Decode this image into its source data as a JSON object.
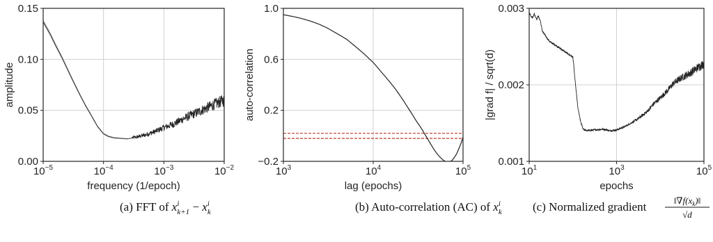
{
  "chart_data": [
    {
      "type": "line",
      "panel": "a",
      "caption": "(a) FFT of x^i_{k+1} − x^i_k",
      "caption_parts": {
        "prefix": "(a) FFT of ",
        "var": "x",
        "sup1": "i",
        "sub1": "k+1",
        "minus": " − ",
        "sup2": "i",
        "sub2": "k"
      },
      "xlabel": "frequency (1/epoch)",
      "ylabel": "amplitude",
      "xscale": "log",
      "xlim": [
        1e-05,
        0.01
      ],
      "ylim": [
        0.0,
        0.15
      ],
      "grid": true,
      "xticks": [
        {
          "base": "10",
          "exp": "−5"
        },
        {
          "base": "10",
          "exp": "−4"
        },
        {
          "base": "10",
          "exp": "−3"
        },
        {
          "base": "10",
          "exp": "−2"
        }
      ],
      "yticks": [
        "0.00",
        "0.05",
        "0.10",
        "0.15"
      ],
      "series": [
        {
          "color": "#222222",
          "band_color": "#bdbdbd",
          "noise_start": 0.0003,
          "x": [
            1e-05,
            1.3e-05,
            1.6e-05,
            2e-05,
            2.5e-05,
            3e-05,
            3.5e-05,
            4e-05,
            5e-05,
            6e-05,
            7e-05,
            8e-05,
            0.0001,
            0.00012,
            0.00015,
            0.0002,
            0.00025,
            0.0003,
            0.0004,
            0.0005,
            0.0007,
            0.001,
            0.0015,
            0.002,
            0.003,
            0.005,
            0.007,
            0.01
          ],
          "y": [
            0.137,
            0.125,
            0.114,
            0.103,
            0.091,
            0.081,
            0.073,
            0.066,
            0.055,
            0.047,
            0.04,
            0.034,
            0.027,
            0.0245,
            0.023,
            0.0225,
            0.022,
            0.023,
            0.0245,
            0.026,
            0.029,
            0.033,
            0.037,
            0.041,
            0.046,
            0.052,
            0.056,
            0.06
          ]
        }
      ]
    },
    {
      "type": "line",
      "panel": "b",
      "caption": "(b) Auto-correlation (AC) of x^i_k",
      "caption_parts": {
        "prefix": "(b) Auto-correlation (AC) of ",
        "var": "x",
        "sup1": "i",
        "sub1": "k"
      },
      "xlabel": "lag (epochs)",
      "ylabel": "auto-correlation",
      "xscale": "log",
      "xlim": [
        1000,
        100000
      ],
      "ylim": [
        -0.2,
        1.0
      ],
      "grid": true,
      "xticks": [
        {
          "base": "10",
          "exp": "3"
        },
        {
          "base": "10",
          "exp": "4"
        },
        {
          "base": "10",
          "exp": "5"
        }
      ],
      "yticks": [
        "−0.2",
        "0.2",
        "0.6",
        "1.0"
      ],
      "hlines": [
        {
          "y": 0.02,
          "color": "#c0392b",
          "style": "dashed"
        },
        {
          "y": -0.02,
          "color": "#c0392b",
          "style": "dashed"
        }
      ],
      "series": [
        {
          "color": "#222222",
          "x": [
            1000,
            1300,
            1600,
            2000,
            2500,
            3000,
            4000,
            5000,
            6000,
            7000,
            8000,
            10000,
            12000,
            15000,
            18000,
            22000,
            26000,
            30000,
            35000,
            40000,
            45000,
            50000,
            55000,
            60000,
            65000,
            70000,
            75000,
            80000,
            85000,
            90000,
            95000,
            100000
          ],
          "y": [
            0.95,
            0.935,
            0.92,
            0.9,
            0.875,
            0.85,
            0.8,
            0.76,
            0.715,
            0.675,
            0.64,
            0.575,
            0.51,
            0.43,
            0.36,
            0.27,
            0.19,
            0.12,
            0.05,
            -0.02,
            -0.08,
            -0.13,
            -0.165,
            -0.19,
            -0.205,
            -0.205,
            -0.195,
            -0.17,
            -0.14,
            -0.1,
            -0.06,
            -0.01
          ]
        }
      ]
    },
    {
      "type": "line",
      "panel": "c",
      "caption": "(c) Normalized gradient ||∇f(x_k)|| / √d",
      "caption_parts": {
        "prefix": "(c) Normalized gradient ",
        "num": "‖∇f(x",
        "num_sub": "k",
        "num_end": ")‖",
        "den": "√d"
      },
      "xlabel": "epochs",
      "ylabel": "|grad f| / sqrt(d)",
      "xscale": "log",
      "xlim": [
        10,
        100000
      ],
      "ylim": [
        0.001,
        0.003
      ],
      "grid": true,
      "xticks": [
        {
          "base": "10",
          "exp": "1"
        },
        {
          "base": "10",
          "exp": "3"
        },
        {
          "base": "10",
          "exp": "5"
        }
      ],
      "yticks": [
        "0.001",
        "0.002",
        "0.003"
      ],
      "series": [
        {
          "color": "#222222",
          "x": [
            10,
            11,
            12,
            13,
            14,
            15,
            16,
            18,
            20,
            25,
            30,
            40,
            50,
            60,
            70,
            80,
            90,
            100,
            105,
            110,
            120,
            130,
            150,
            170,
            200,
            300,
            500,
            700,
            1000,
            1500,
            2000,
            3000,
            5000,
            7000,
            10000,
            15000,
            20000,
            30000,
            50000,
            70000,
            100000
          ],
          "y": [
            0.00295,
            0.0029,
            0.00288,
            0.00293,
            0.00289,
            0.00286,
            0.0029,
            0.00284,
            0.0027,
            0.00262,
            0.00256,
            0.00252,
            0.00248,
            0.00245,
            0.00242,
            0.0024,
            0.00238,
            0.00236,
            0.00225,
            0.0021,
            0.0019,
            0.0017,
            0.00152,
            0.00143,
            0.0014,
            0.00141,
            0.00142,
            0.0014,
            0.00141,
            0.00145,
            0.00149,
            0.00155,
            0.00165,
            0.00175,
            0.00183,
            0.00193,
            0.00202,
            0.00209,
            0.00216,
            0.00222,
            0.00228
          ]
        }
      ]
    }
  ]
}
